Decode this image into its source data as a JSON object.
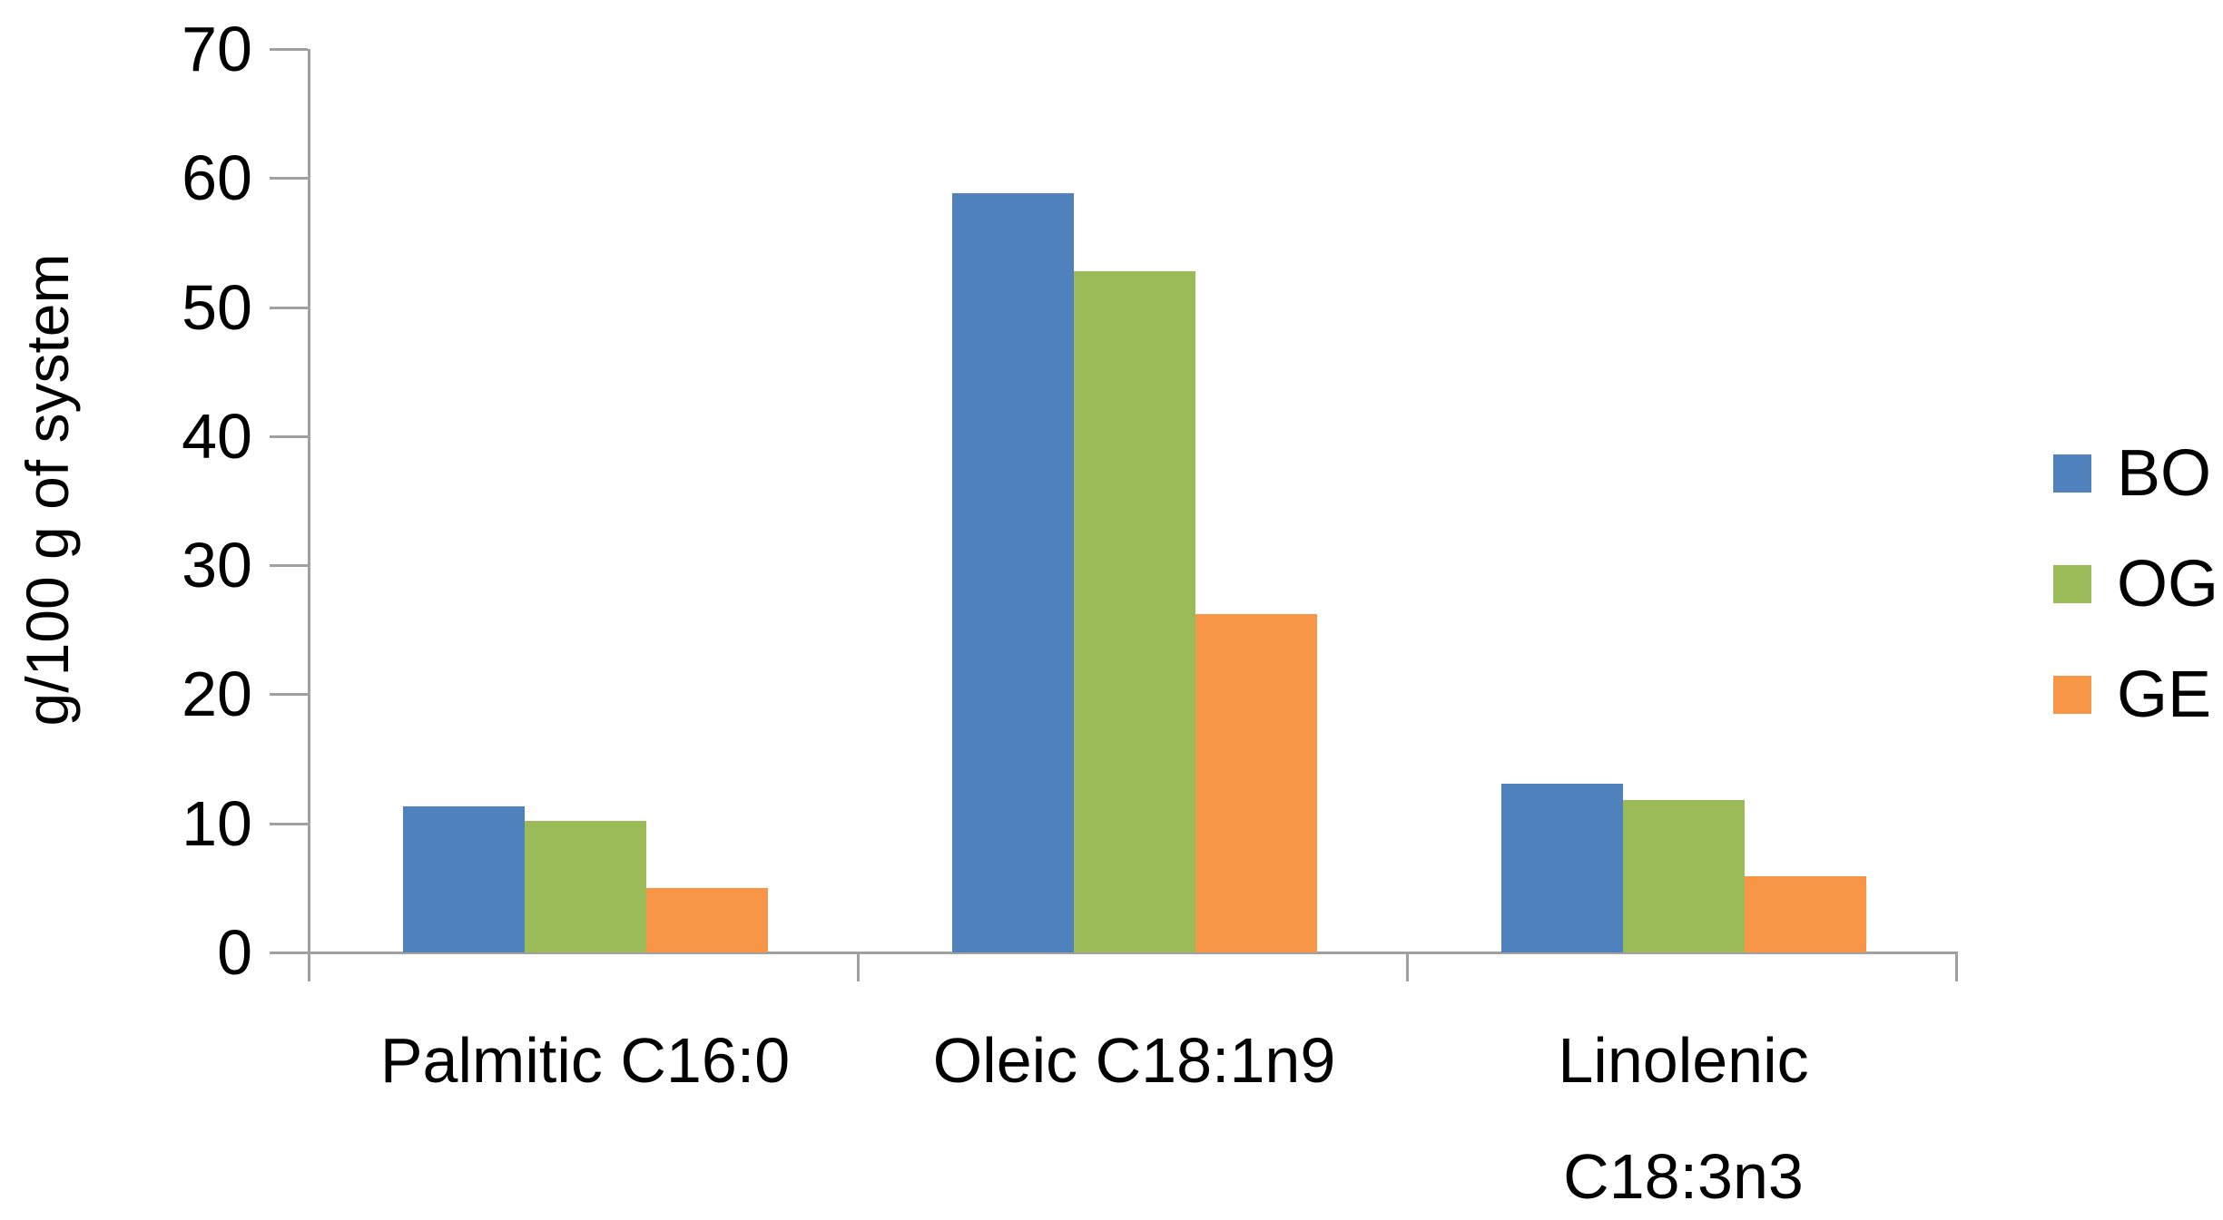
{
  "chart_data": {
    "type": "bar",
    "title": "",
    "ylabel": "g/100 g of system",
    "xlabel": "",
    "categories": [
      {
        "lines": [
          "Palmitic C16:0"
        ]
      },
      {
        "lines": [
          "Oleic C18:1n9"
        ]
      },
      {
        "lines": [
          "Linolenic",
          "C18:3n3"
        ]
      }
    ],
    "series": [
      {
        "name": "BO",
        "color": "#4F81BD",
        "values": [
          11.3,
          58.8,
          13.1
        ]
      },
      {
        "name": "OG",
        "color": "#9BBB59",
        "values": [
          10.2,
          52.8,
          11.8
        ]
      },
      {
        "name": "GE",
        "color": "#F79646",
        "values": [
          5.0,
          26.2,
          5.9
        ]
      }
    ],
    "ylim": [
      0,
      70
    ],
    "yticks": [
      0,
      10,
      20,
      30,
      40,
      50,
      60,
      70
    ],
    "grid": false,
    "legend_position": "right",
    "axis_color": "#A0A0A0",
    "text_color": "#000000",
    "background_color": "#FFFFFF"
  }
}
